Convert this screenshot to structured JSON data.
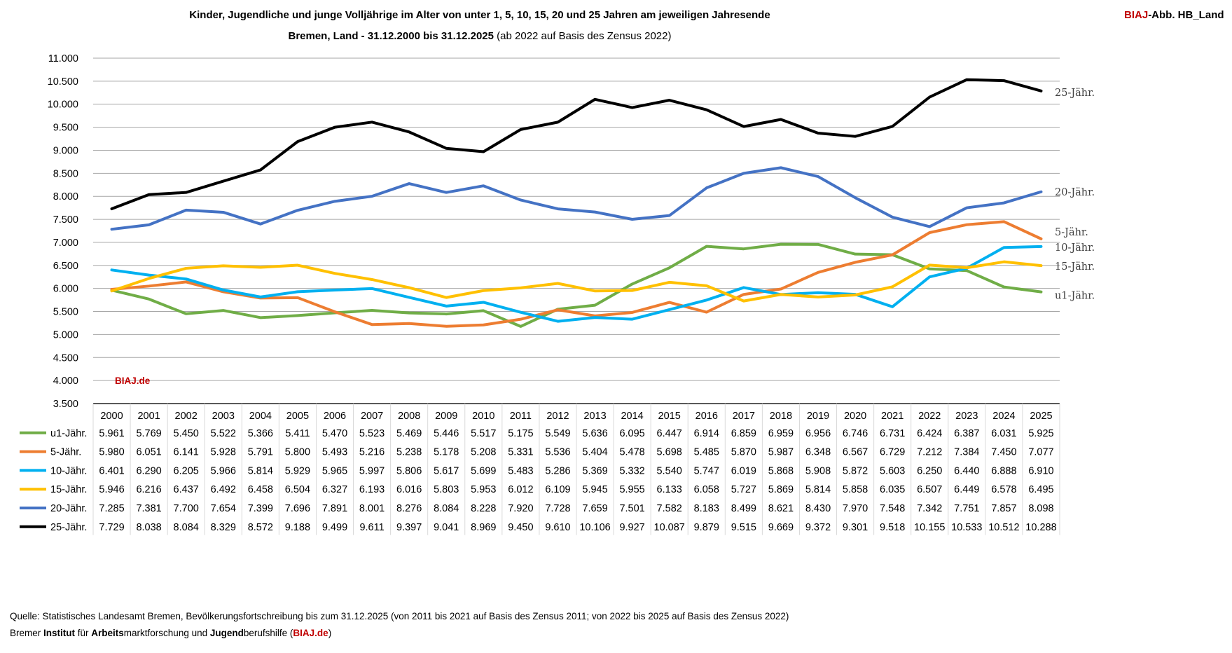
{
  "header": {
    "title": "Kinder, Jugendliche und junge Volljährige im Alter von unter 1, 5, 10, 15, 20 und 25 Jahren am jeweiligen Jahresende",
    "subtitle_bold": "Bremen, Land - 31.12.2000 bis 31.12.2025",
    "subtitle_rest": " (ab 2022 auf Basis des Zensus 2022)",
    "tag_red": "BIAJ",
    "tag_rest": "-Abb. HB_Land"
  },
  "watermark": "BIAJ.de",
  "footer": {
    "source": "Quelle: Statistisches Landesamt Bremen, Bevölkerungsfortschreibung bis zum 31.12.2025 (von 2011 bis 2021 auf Basis des Zensus 2011; von 2022 bis 2025 auf Basis des Zensus 2022)",
    "inst_1": "Bremer ",
    "inst_2": "Institut",
    "inst_3": " für ",
    "inst_4": "Arbeits",
    "inst_5": "marktforschung und ",
    "inst_6": "Jugend",
    "inst_7": "berufshilfe (",
    "inst_8": "BIAJ.de",
    "inst_9": ")"
  },
  "chart_data": {
    "type": "line",
    "categories": [
      "2000",
      "2001",
      "2002",
      "2003",
      "2004",
      "2005",
      "2006",
      "2007",
      "2008",
      "2009",
      "2010",
      "2011",
      "2012",
      "2013",
      "2014",
      "2015",
      "2016",
      "2017",
      "2018",
      "2019",
      "2020",
      "2021",
      "2022",
      "2023",
      "2024",
      "2025"
    ],
    "ylim": [
      3500,
      11000
    ],
    "yticks": [
      3500,
      4000,
      4500,
      5000,
      5500,
      6000,
      6500,
      7000,
      7500,
      8000,
      8500,
      9000,
      9500,
      10000,
      10500,
      11000
    ],
    "ytick_labels": [
      "3.500",
      "4.000",
      "4.500",
      "5.000",
      "5.500",
      "6.000",
      "6.500",
      "7.000",
      "7.500",
      "8.000",
      "8.500",
      "9.000",
      "9.500",
      "10.000",
      "10.500",
      "11.000"
    ],
    "grid": true,
    "legend": "data table below chart",
    "series": [
      {
        "name": "u1-Jähr.",
        "end_label": "u1-Jähr.",
        "color": "#70ad47",
        "values": [
          5961,
          5769,
          5450,
          5522,
          5366,
          5411,
          5470,
          5523,
          5469,
          5446,
          5517,
          5175,
          5549,
          5636,
          6095,
          6447,
          6914,
          6859,
          6959,
          6956,
          6746,
          6731,
          6424,
          6387,
          6031,
          5925
        ],
        "labels": [
          "5.961",
          "5.769",
          "5.450",
          "5.522",
          "5.366",
          "5.411",
          "5.470",
          "5.523",
          "5.469",
          "5.446",
          "5.517",
          "5.175",
          "5.549",
          "5.636",
          "6.095",
          "6.447",
          "6.914",
          "6.859",
          "6.959",
          "6.956",
          "6.746",
          "6.731",
          "6.424",
          "6.387",
          "6.031",
          "5.925"
        ]
      },
      {
        "name": "5-Jähr.",
        "end_label": "5-Jähr.",
        "color": "#ed7d31",
        "values": [
          5980,
          6051,
          6141,
          5928,
          5791,
          5800,
          5493,
          5216,
          5238,
          5178,
          5208,
          5331,
          5536,
          5404,
          5478,
          5698,
          5485,
          5870,
          5987,
          6348,
          6567,
          6729,
          7212,
          7384,
          7450,
          7077
        ],
        "labels": [
          "5.980",
          "6.051",
          "6.141",
          "5.928",
          "5.791",
          "5.800",
          "5.493",
          "5.216",
          "5.238",
          "5.178",
          "5.208",
          "5.331",
          "5.536",
          "5.404",
          "5.478",
          "5.698",
          "5.485",
          "5.870",
          "5.987",
          "6.348",
          "6.567",
          "6.729",
          "7.212",
          "7.384",
          "7.450",
          "7.077"
        ]
      },
      {
        "name": "10-Jähr.",
        "end_label": "10-Jähr.",
        "color": "#00b0f0",
        "values": [
          6401,
          6290,
          6205,
          5966,
          5814,
          5929,
          5965,
          5997,
          5806,
          5617,
          5699,
          5483,
          5286,
          5369,
          5332,
          5540,
          5747,
          6019,
          5868,
          5908,
          5872,
          5603,
          6250,
          6440,
          6888,
          6910
        ],
        "labels": [
          "6.401",
          "6.290",
          "6.205",
          "5.966",
          "5.814",
          "5.929",
          "5.965",
          "5.997",
          "5.806",
          "5.617",
          "5.699",
          "5.483",
          "5.286",
          "5.369",
          "5.332",
          "5.540",
          "5.747",
          "6.019",
          "5.868",
          "5.908",
          "5.872",
          "5.603",
          "6.250",
          "6.440",
          "6.888",
          "6.910"
        ]
      },
      {
        "name": "15-Jähr.",
        "end_label": "15-Jähr.",
        "color": "#ffc000",
        "values": [
          5946,
          6216,
          6437,
          6492,
          6458,
          6504,
          6327,
          6193,
          6016,
          5803,
          5953,
          6012,
          6109,
          5945,
          5955,
          6133,
          6058,
          5727,
          5869,
          5814,
          5858,
          6035,
          6507,
          6449,
          6578,
          6495
        ],
        "labels": [
          "5.946",
          "6.216",
          "6.437",
          "6.492",
          "6.458",
          "6.504",
          "6.327",
          "6.193",
          "6.016",
          "5.803",
          "5.953",
          "6.012",
          "6.109",
          "5.945",
          "5.955",
          "6.133",
          "6.058",
          "5.727",
          "5.869",
          "5.814",
          "5.858",
          "6.035",
          "6.507",
          "6.449",
          "6.578",
          "6.495"
        ]
      },
      {
        "name": "20-Jähr.",
        "end_label": "20-Jähr.",
        "color": "#4472c4",
        "values": [
          7285,
          7381,
          7700,
          7654,
          7399,
          7696,
          7891,
          8001,
          8276,
          8084,
          8228,
          7920,
          7728,
          7659,
          7501,
          7582,
          8183,
          8499,
          8621,
          8430,
          7970,
          7548,
          7342,
          7751,
          7857,
          8098
        ],
        "labels": [
          "7.285",
          "7.381",
          "7.700",
          "7.654",
          "7.399",
          "7.696",
          "7.891",
          "8.001",
          "8.276",
          "8.084",
          "8.228",
          "7.920",
          "7.728",
          "7.659",
          "7.501",
          "7.582",
          "8.183",
          "8.499",
          "8.621",
          "8.430",
          "7.970",
          "7.548",
          "7.342",
          "7.751",
          "7.857",
          "8.098"
        ]
      },
      {
        "name": "25-Jähr.",
        "end_label": "25-Jähr.",
        "color": "#000000",
        "values": [
          7729,
          8038,
          8084,
          8329,
          8572,
          9188,
          9499,
          9611,
          9397,
          9041,
          8969,
          9450,
          9610,
          10106,
          9927,
          10087,
          9879,
          9515,
          9669,
          9372,
          9301,
          9518,
          10155,
          10533,
          10512,
          10288
        ],
        "labels": [
          "7.729",
          "8.038",
          "8.084",
          "8.329",
          "8.572",
          "9.188",
          "9.499",
          "9.611",
          "9.397",
          "9.041",
          "8.969",
          "9.450",
          "9.610",
          "10.106",
          "9.927",
          "10.087",
          "9.879",
          "9.515",
          "9.669",
          "9.372",
          "9.301",
          "9.518",
          "10.155",
          "10.533",
          "10.512",
          "10.288"
        ]
      }
    ]
  }
}
